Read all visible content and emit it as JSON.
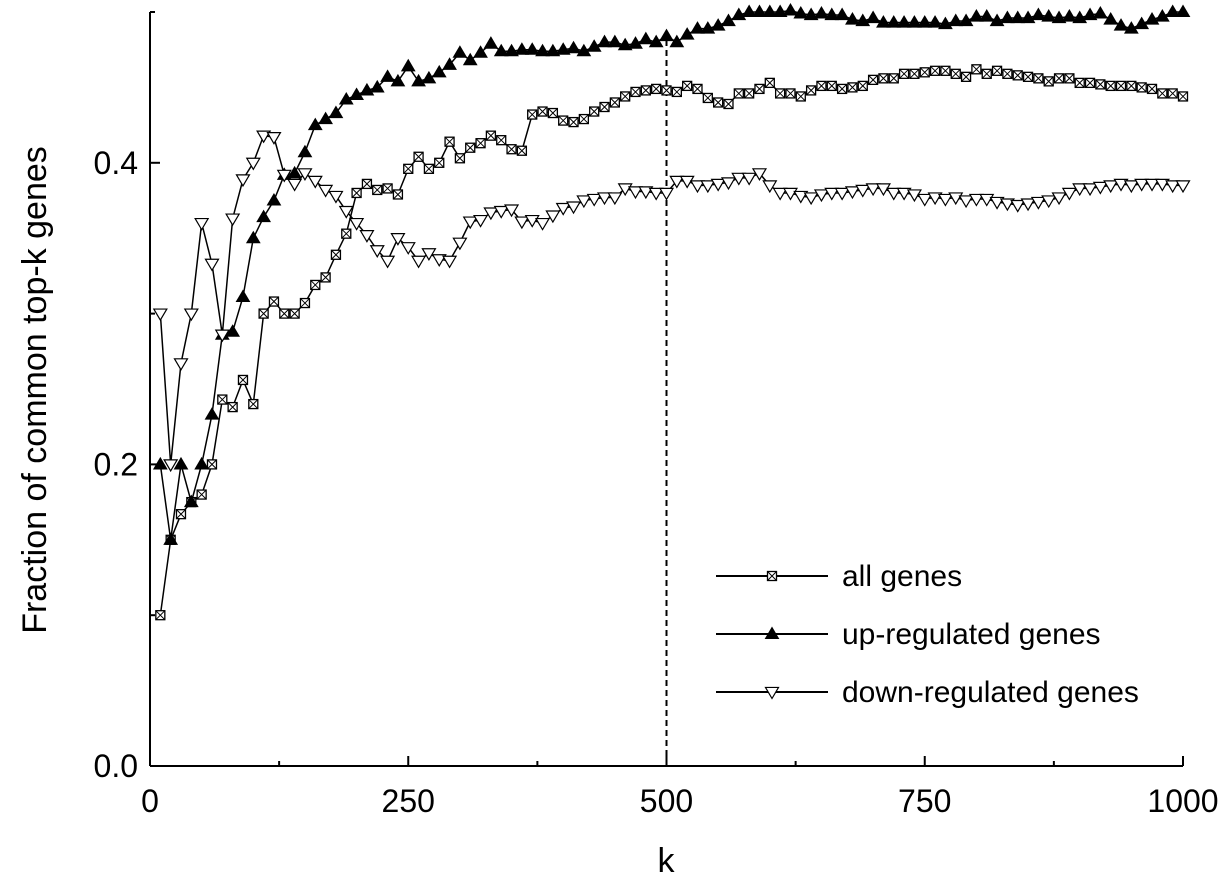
{
  "chart_data": {
    "type": "line",
    "title": "",
    "xlabel": "k",
    "ylabel": "Fraction of common top-k genes",
    "xlim": [
      0,
      1000
    ],
    "ylim": [
      0,
      0.5
    ],
    "xticks": [
      0,
      250,
      500,
      750,
      1000
    ],
    "xtick_labels": [
      "0",
      "250",
      "500",
      "750",
      "1000"
    ],
    "yticks": [
      0.0,
      0.2,
      0.4
    ],
    "ytick_labels": [
      "0.0",
      "0.2",
      "0.4"
    ],
    "grid": false,
    "legend_position": "bottom-right",
    "reference_line": {
      "x": 500,
      "style": "dashed"
    },
    "x": [
      10,
      20,
      30,
      40,
      50,
      60,
      70,
      80,
      90,
      100,
      110,
      120,
      130,
      140,
      150,
      160,
      170,
      180,
      190,
      200,
      210,
      220,
      230,
      240,
      250,
      260,
      270,
      280,
      290,
      300,
      310,
      320,
      330,
      340,
      350,
      360,
      370,
      380,
      390,
      400,
      410,
      420,
      430,
      440,
      450,
      460,
      470,
      480,
      490,
      500,
      510,
      520,
      530,
      540,
      550,
      560,
      570,
      580,
      590,
      600,
      610,
      620,
      630,
      640,
      650,
      660,
      670,
      680,
      690,
      700,
      710,
      720,
      730,
      740,
      750,
      760,
      770,
      780,
      790,
      800,
      810,
      820,
      830,
      840,
      850,
      860,
      870,
      880,
      890,
      900,
      910,
      920,
      930,
      940,
      950,
      960,
      970,
      980,
      990,
      1000
    ],
    "series": [
      {
        "name": "all genes",
        "marker": "crossed-square",
        "values": [
          0.1,
          0.15,
          0.167,
          0.175,
          0.18,
          0.2,
          0.243,
          0.238,
          0.256,
          0.24,
          0.3,
          0.308,
          0.3,
          0.3,
          0.307,
          0.319,
          0.324,
          0.339,
          0.353,
          0.38,
          0.386,
          0.382,
          0.383,
          0.379,
          0.396,
          0.404,
          0.396,
          0.4,
          0.414,
          0.403,
          0.41,
          0.413,
          0.418,
          0.415,
          0.409,
          0.408,
          0.432,
          0.434,
          0.433,
          0.428,
          0.427,
          0.429,
          0.434,
          0.437,
          0.44,
          0.444,
          0.447,
          0.448,
          0.449,
          0.448,
          0.447,
          0.451,
          0.449,
          0.443,
          0.44,
          0.439,
          0.446,
          0.446,
          0.449,
          0.453,
          0.446,
          0.446,
          0.444,
          0.448,
          0.451,
          0.451,
          0.449,
          0.45,
          0.451,
          0.455,
          0.456,
          0.456,
          0.459,
          0.459,
          0.46,
          0.461,
          0.461,
          0.459,
          0.457,
          0.462,
          0.459,
          0.461,
          0.459,
          0.458,
          0.457,
          0.456,
          0.454,
          0.456,
          0.456,
          0.453,
          0.453,
          0.452,
          0.451,
          0.451,
          0.451,
          0.45,
          0.449,
          0.446,
          0.446,
          0.444
        ]
      },
      {
        "name": "up-regulated genes",
        "marker": "filled-triangle-up",
        "values": [
          0.2,
          0.15,
          0.2,
          0.175,
          0.2,
          0.233,
          0.286,
          0.288,
          0.311,
          0.35,
          0.364,
          0.375,
          0.392,
          0.393,
          0.407,
          0.425,
          0.429,
          0.433,
          0.442,
          0.445,
          0.448,
          0.45,
          0.457,
          0.454,
          0.464,
          0.454,
          0.456,
          0.46,
          0.465,
          0.473,
          0.468,
          0.473,
          0.479,
          0.474,
          0.474,
          0.475,
          0.475,
          0.474,
          0.474,
          0.475,
          0.476,
          0.474,
          0.477,
          0.48,
          0.48,
          0.478,
          0.479,
          0.482,
          0.48,
          0.484,
          0.48,
          0.485,
          0.489,
          0.489,
          0.491,
          0.494,
          0.498,
          0.5,
          0.5,
          0.5,
          0.5,
          0.501,
          0.499,
          0.498,
          0.499,
          0.498,
          0.498,
          0.495,
          0.494,
          0.496,
          0.493,
          0.493,
          0.493,
          0.493,
          0.493,
          0.493,
          0.492,
          0.494,
          0.494,
          0.497,
          0.497,
          0.494,
          0.496,
          0.496,
          0.496,
          0.498,
          0.497,
          0.496,
          0.497,
          0.496,
          0.498,
          0.499,
          0.495,
          0.491,
          0.489,
          0.492,
          0.495,
          0.497,
          0.5,
          0.5
        ]
      },
      {
        "name": "down-regulated genes",
        "marker": "open-triangle-down",
        "values": [
          0.3,
          0.2,
          0.267,
          0.3,
          0.36,
          0.333,
          0.286,
          0.363,
          0.389,
          0.4,
          0.418,
          0.417,
          0.392,
          0.386,
          0.393,
          0.388,
          0.382,
          0.378,
          0.368,
          0.36,
          0.352,
          0.342,
          0.335,
          0.35,
          0.344,
          0.335,
          0.34,
          0.336,
          0.335,
          0.347,
          0.361,
          0.362,
          0.367,
          0.368,
          0.369,
          0.361,
          0.362,
          0.36,
          0.365,
          0.37,
          0.371,
          0.375,
          0.376,
          0.377,
          0.377,
          0.383,
          0.381,
          0.381,
          0.38,
          0.38,
          0.388,
          0.388,
          0.385,
          0.385,
          0.386,
          0.387,
          0.39,
          0.39,
          0.393,
          0.385,
          0.38,
          0.38,
          0.378,
          0.377,
          0.379,
          0.38,
          0.38,
          0.381,
          0.382,
          0.383,
          0.383,
          0.38,
          0.38,
          0.379,
          0.376,
          0.377,
          0.376,
          0.377,
          0.375,
          0.376,
          0.376,
          0.374,
          0.373,
          0.372,
          0.373,
          0.374,
          0.375,
          0.377,
          0.38,
          0.383,
          0.383,
          0.384,
          0.385,
          0.386,
          0.385,
          0.386,
          0.386,
          0.386,
          0.385,
          0.385
        ]
      }
    ]
  }
}
